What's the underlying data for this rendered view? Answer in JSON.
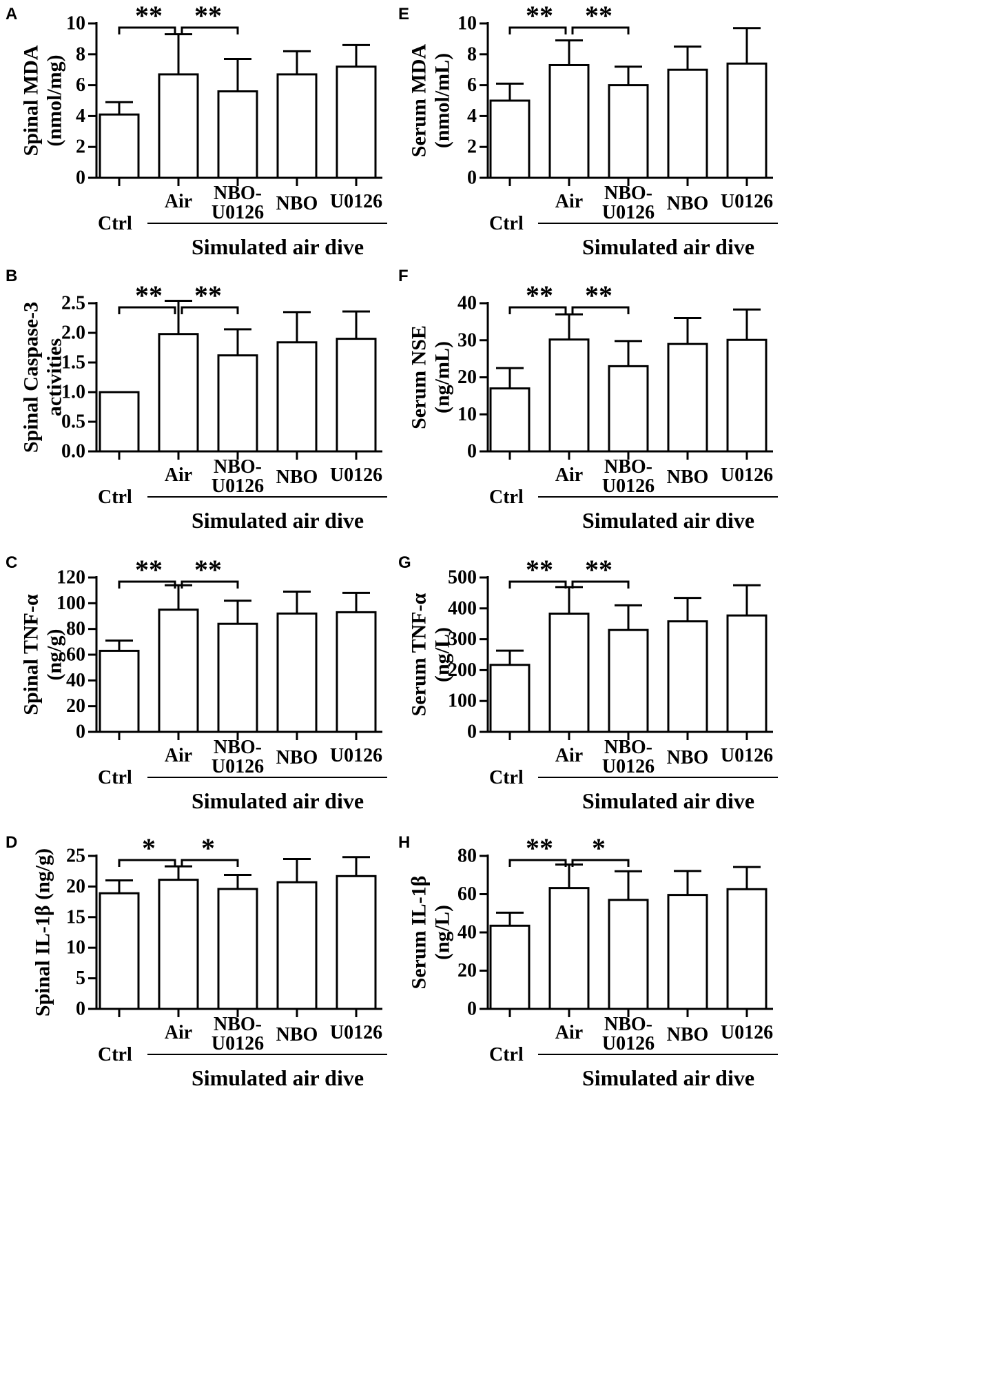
{
  "figure": {
    "category_labels": {
      "ctrl": "Ctrl",
      "air": "Air",
      "nbo_u0126": [
        "NBO-",
        "U0126"
      ],
      "nbo": "NBO",
      "u0126": "U0126"
    },
    "group_label": "Simulated air dive"
  },
  "chart_data": [
    {
      "panel": "A",
      "type": "bar",
      "ylabel_lines": [
        "Spinal MDA",
        "(nmol/mg)"
      ],
      "ylim": [
        0,
        10
      ],
      "yticks": [
        0,
        2,
        4,
        6,
        8,
        10
      ],
      "ytick_labels": [
        "0",
        "2",
        "4",
        "6",
        "8",
        "10"
      ],
      "categories": [
        "Ctrl",
        "Air",
        "NBO-U0126",
        "NBO",
        "U0126"
      ],
      "values": [
        4.1,
        6.7,
        5.6,
        6.7,
        7.2
      ],
      "errors": [
        0.8,
        2.6,
        2.1,
        1.5,
        1.4
      ],
      "significance": [
        {
          "from": 0,
          "to": 1,
          "label": "**"
        },
        {
          "from": 1,
          "to": 2,
          "label": "**"
        }
      ]
    },
    {
      "panel": "B",
      "type": "bar",
      "ylabel_lines": [
        "Spinal Caspase-3",
        "activities"
      ],
      "ylim": [
        0,
        2.5
      ],
      "yticks": [
        0,
        0.5,
        1.0,
        1.5,
        2.0,
        2.5
      ],
      "ytick_labels": [
        "0.0",
        "0.5",
        "1.0",
        "1.5",
        "2.0",
        "2.5"
      ],
      "categories": [
        "Ctrl",
        "Air",
        "NBO-U0126",
        "NBO",
        "U0126"
      ],
      "values": [
        1.0,
        1.98,
        1.62,
        1.84,
        1.9
      ],
      "errors": [
        0,
        0.56,
        0.44,
        0.51,
        0.46
      ],
      "significance": [
        {
          "from": 0,
          "to": 1,
          "label": "**"
        },
        {
          "from": 1,
          "to": 2,
          "label": "**"
        }
      ]
    },
    {
      "panel": "C",
      "type": "bar",
      "ylabel_lines": [
        "Spinal TNF-α",
        "(ng/g)"
      ],
      "ylim": [
        0,
        120
      ],
      "yticks": [
        0,
        20,
        40,
        60,
        80,
        100,
        120
      ],
      "ytick_labels": [
        "0",
        "20",
        "40",
        "60",
        "80",
        "100",
        "120"
      ],
      "categories": [
        "Ctrl",
        "Air",
        "NBO-U0126",
        "NBO",
        "U0126"
      ],
      "values": [
        63,
        95,
        84,
        92,
        93
      ],
      "errors": [
        8,
        19,
        18,
        17,
        15
      ],
      "significance": [
        {
          "from": 0,
          "to": 1,
          "label": "**"
        },
        {
          "from": 1,
          "to": 2,
          "label": "**"
        }
      ]
    },
    {
      "panel": "D",
      "type": "bar",
      "ylabel_lines": [
        "Spinal IL-1β (ng/g)"
      ],
      "ylim": [
        0,
        25
      ],
      "yticks": [
        0,
        5,
        10,
        15,
        20,
        25
      ],
      "ytick_labels": [
        "0",
        "5",
        "10",
        "15",
        "20",
        "25"
      ],
      "categories": [
        "Ctrl",
        "Air",
        "NBO-U0126",
        "NBO",
        "U0126"
      ],
      "values": [
        18.9,
        21.1,
        19.6,
        20.7,
        21.7
      ],
      "errors": [
        2.1,
        2.2,
        2.3,
        3.8,
        3.1
      ],
      "significance": [
        {
          "from": 0,
          "to": 1,
          "label": "*"
        },
        {
          "from": 1,
          "to": 2,
          "label": "*"
        }
      ]
    },
    {
      "panel": "E",
      "type": "bar",
      "ylabel_lines": [
        "Serum MDA",
        "(nmol/mL)"
      ],
      "ylim": [
        0,
        10
      ],
      "yticks": [
        0,
        2,
        4,
        6,
        8,
        10
      ],
      "ytick_labels": [
        "0",
        "2",
        "4",
        "6",
        "8",
        "10"
      ],
      "categories": [
        "Ctrl",
        "Air",
        "NBO-U0126",
        "NBO",
        "U0126"
      ],
      "values": [
        5.0,
        7.3,
        6.0,
        7.0,
        7.4
      ],
      "errors": [
        1.1,
        1.6,
        1.2,
        1.5,
        2.3
      ],
      "significance": [
        {
          "from": 0,
          "to": 1,
          "label": "**"
        },
        {
          "from": 1,
          "to": 2,
          "label": "**"
        }
      ]
    },
    {
      "panel": "F",
      "type": "bar",
      "ylabel_lines": [
        "Serum NSE",
        "(ng/mL)"
      ],
      "ylim": [
        0,
        40
      ],
      "yticks": [
        0,
        10,
        20,
        30,
        40
      ],
      "ytick_labels": [
        "0",
        "10",
        "20",
        "30",
        "40"
      ],
      "categories": [
        "Ctrl",
        "Air",
        "NBO-U0126",
        "NBO",
        "U0126"
      ],
      "values": [
        17,
        30.2,
        23,
        29,
        30.1
      ],
      "errors": [
        5.5,
        6.8,
        6.8,
        7.0,
        8.2
      ],
      "significance": [
        {
          "from": 0,
          "to": 1,
          "label": "**"
        },
        {
          "from": 1,
          "to": 2,
          "label": "**"
        }
      ]
    },
    {
      "panel": "G",
      "type": "bar",
      "ylabel_lines": [
        "Serum TNF-α",
        "(ng/L)"
      ],
      "ylim": [
        0,
        500
      ],
      "yticks": [
        0,
        100,
        200,
        300,
        400,
        500
      ],
      "ytick_labels": [
        "0",
        "100",
        "200",
        "300",
        "400",
        "500"
      ],
      "categories": [
        "Ctrl",
        "Air",
        "NBO-U0126",
        "NBO",
        "U0126"
      ],
      "values": [
        217,
        383,
        330,
        358,
        377
      ],
      "errors": [
        46,
        86,
        80,
        76,
        98
      ],
      "significance": [
        {
          "from": 0,
          "to": 1,
          "label": "**"
        },
        {
          "from": 1,
          "to": 2,
          "label": "**"
        }
      ]
    },
    {
      "panel": "H",
      "type": "bar",
      "ylabel_lines": [
        "Serum IL-1β",
        "(ng/L)"
      ],
      "ylim": [
        0,
        80
      ],
      "yticks": [
        0,
        20,
        40,
        60,
        80
      ],
      "ytick_labels": [
        "0",
        "20",
        "40",
        "60",
        "80"
      ],
      "categories": [
        "Ctrl",
        "Air",
        "NBO-U0126",
        "NBO",
        "U0126"
      ],
      "values": [
        43.5,
        63.2,
        57,
        59.6,
        62.6
      ],
      "errors": [
        6.8,
        12.3,
        15,
        12.5,
        11.6
      ],
      "significance": [
        {
          "from": 0,
          "to": 1,
          "label": "**"
        },
        {
          "from": 1,
          "to": 2,
          "label": "*"
        }
      ]
    }
  ]
}
